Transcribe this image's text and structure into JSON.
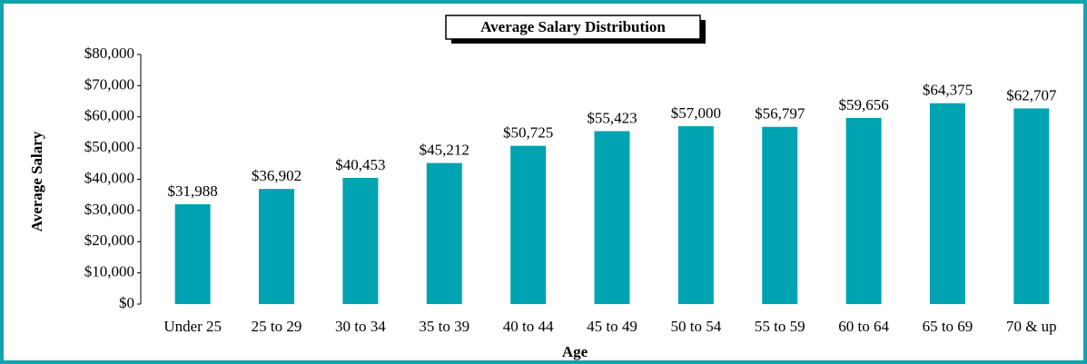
{
  "chart_data": {
    "type": "bar",
    "title": "Average Salary Distribution",
    "x_label": "Age",
    "y_label": "Average Salary",
    "categories": [
      "Under 25",
      "25 to 29",
      "30 to 34",
      "35 to 39",
      "40 to 44",
      "45 to 49",
      "50 to 54",
      "55 to 59",
      "60 to 64",
      "65 to 69",
      "70 & up"
    ],
    "values": [
      31988,
      36902,
      40453,
      45212,
      50725,
      55423,
      57000,
      56797,
      59656,
      64375,
      62707
    ],
    "value_labels": [
      "$31,988",
      "$36,902",
      "$40,453",
      "$45,212",
      "$50,725",
      "$55,423",
      "$57,000",
      "$56,797",
      "$59,656",
      "$64,375",
      "$62,707"
    ],
    "color": "#00a3b1",
    "ylim": [
      0,
      80000
    ],
    "yticks": [
      {
        "value": 0,
        "label": "$0"
      },
      {
        "value": 10000,
        "label": "$10,000"
      },
      {
        "value": 20000,
        "label": "$20,000"
      },
      {
        "value": 30000,
        "label": "$30,000"
      },
      {
        "value": 40000,
        "label": "$40,000"
      },
      {
        "value": 50000,
        "label": "$50,000"
      },
      {
        "value": 60000,
        "label": "$60,000"
      },
      {
        "value": 70000,
        "label": "$70,000"
      },
      {
        "value": 80000,
        "label": "$80,000"
      }
    ],
    "grid": false
  }
}
